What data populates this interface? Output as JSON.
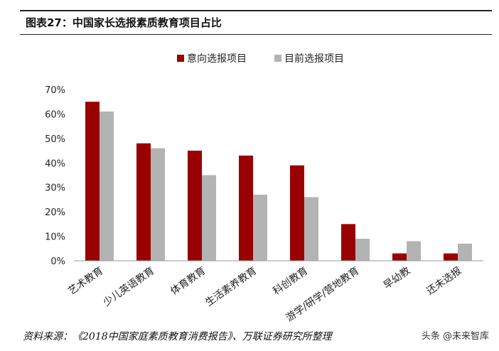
{
  "figure": {
    "title": "图表27：中国家长选报素质教育项目占比",
    "source": "资料来源：《2018中国家庭素质教育消费报告》、万联证券研究所整理",
    "watermark": "头条 @未来智库"
  },
  "chart_data": {
    "type": "bar",
    "categories": [
      "艺术教育",
      "少儿英语教育",
      "体育教育",
      "生活素养教育",
      "科创教育",
      "游学/研学/营地教育",
      "早幼教",
      "还未选报"
    ],
    "series": [
      {
        "name": "意向选报项目",
        "color": "#990000",
        "values": [
          65,
          48,
          45,
          43,
          39,
          15,
          3,
          3
        ]
      },
      {
        "name": "目前选报项目",
        "color": "#b3b3b3",
        "values": [
          61,
          46,
          35,
          27,
          26,
          9,
          8,
          7
        ]
      }
    ],
    "yticks": [
      "0%",
      "10%",
      "20%",
      "30%",
      "40%",
      "50%",
      "60%",
      "70%"
    ],
    "ylim": [
      0,
      70
    ],
    "legend_position": "top",
    "grid": false
  }
}
